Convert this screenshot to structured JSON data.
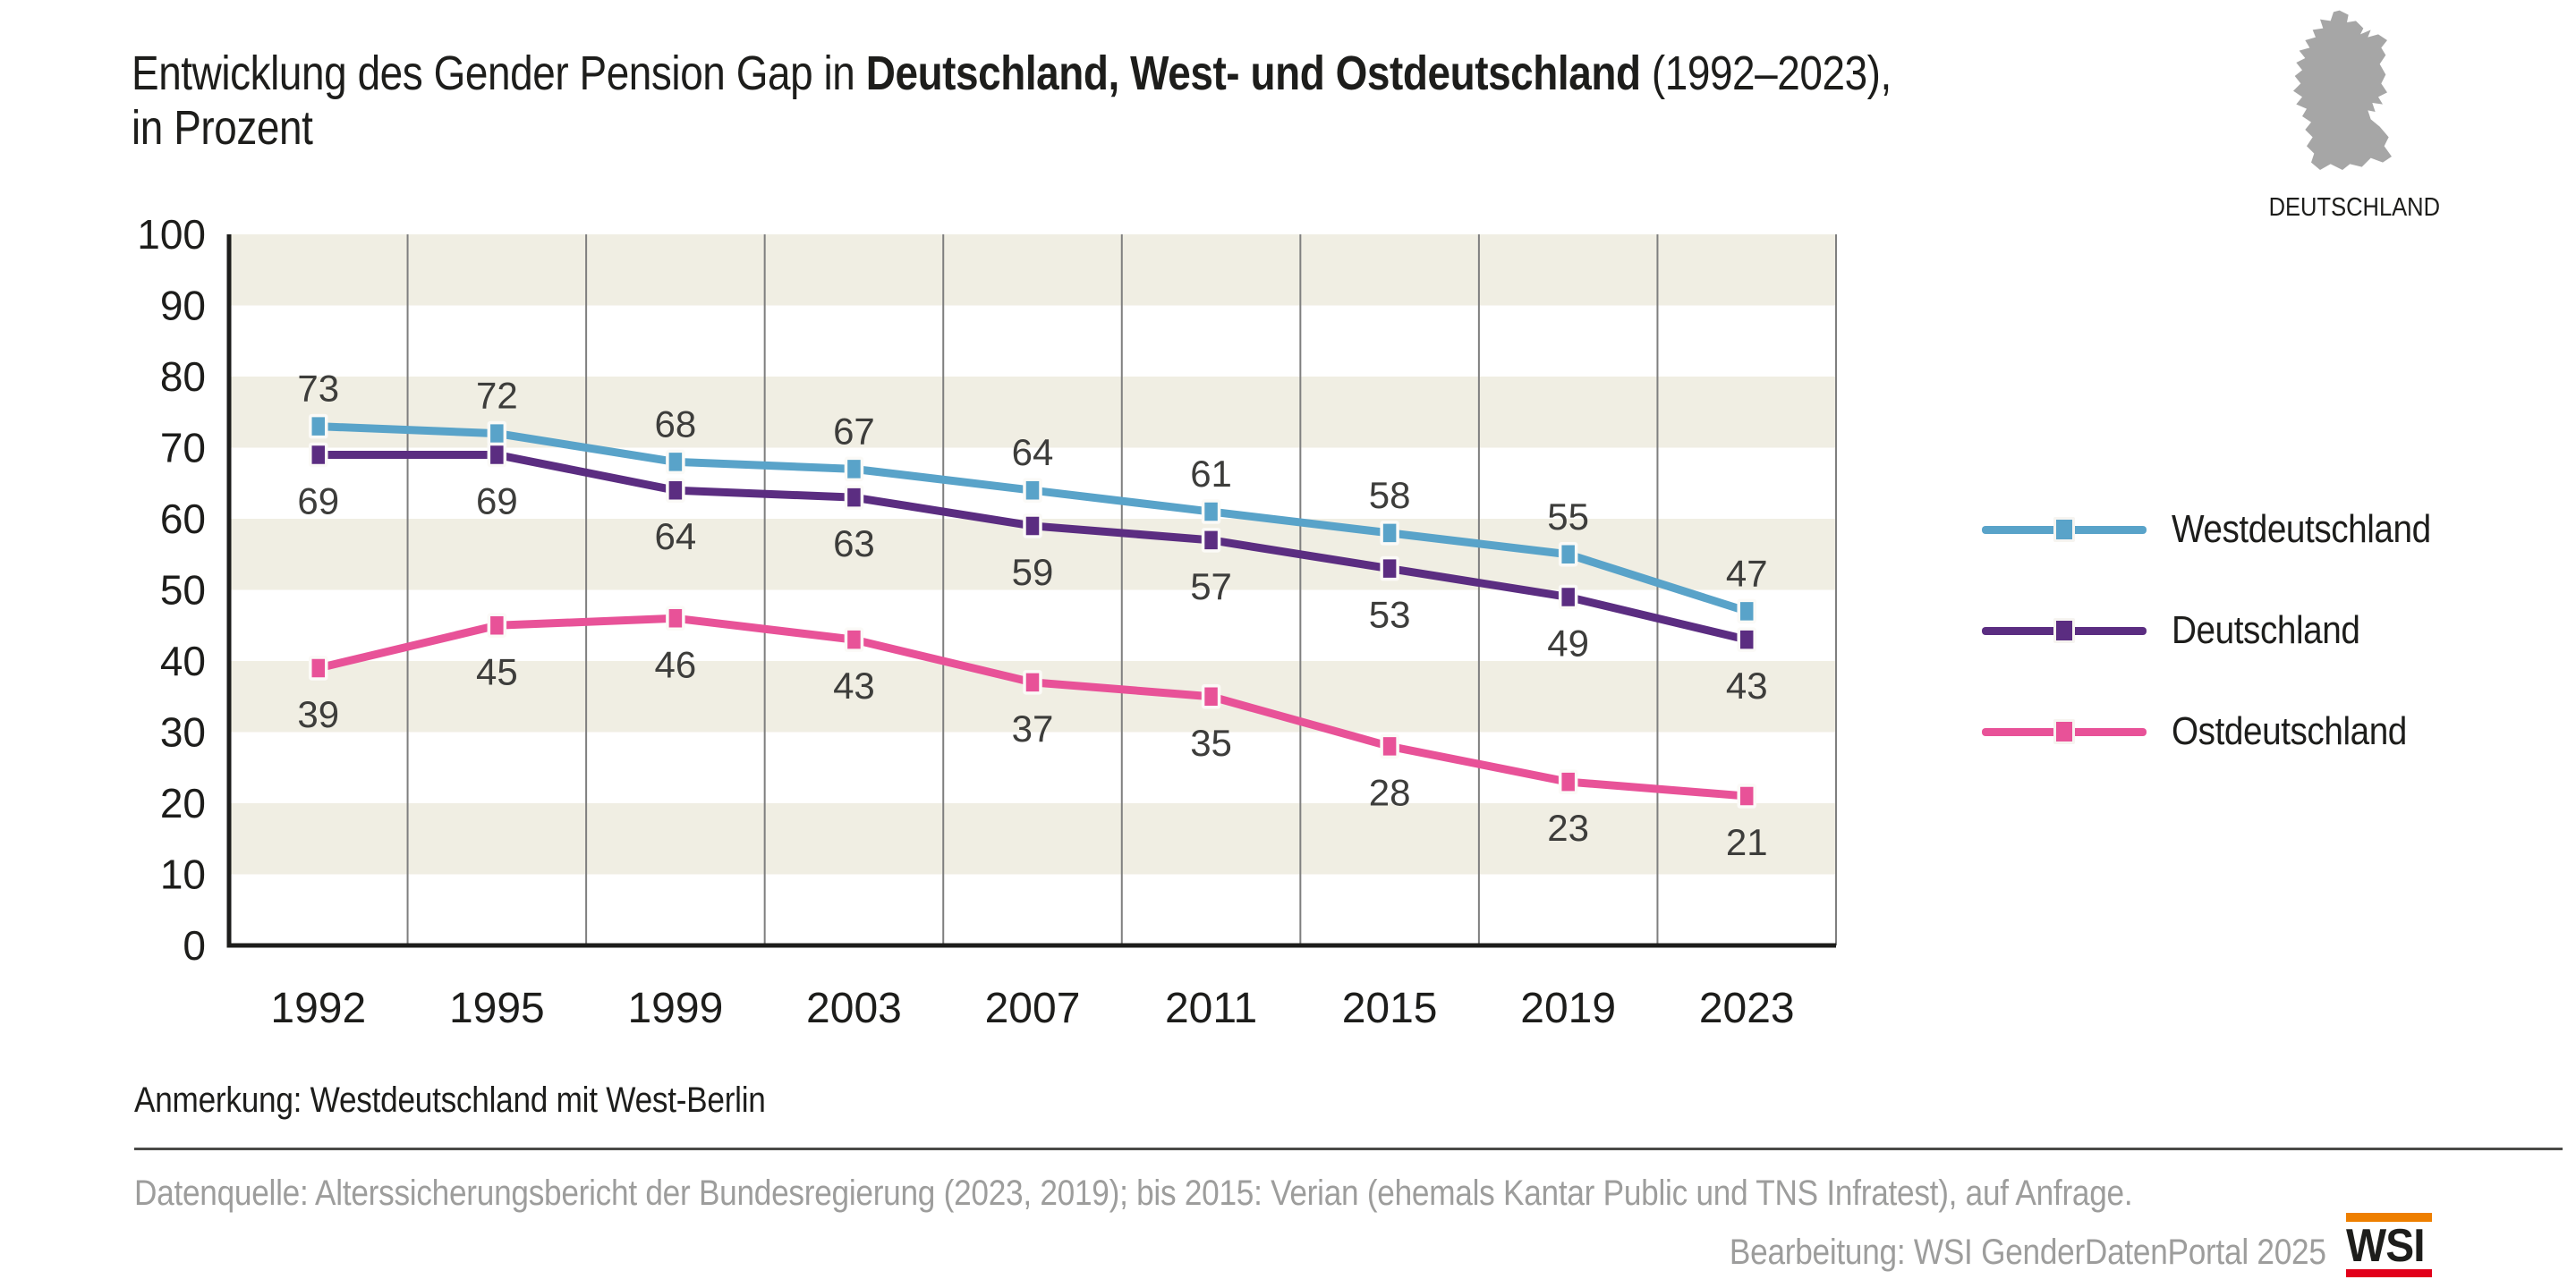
{
  "title": {
    "prefix": "Entwicklung des Gender Pension Gap in ",
    "bold": "Deutschland, West- und Ostdeutschland",
    "suffix": " (1992–2023),",
    "line2": " in Prozent"
  },
  "map_badge": {
    "label": "DEUTSCHLAND",
    "map_color": "#a6a6a6"
  },
  "chart_data": {
    "type": "line",
    "categories": [
      "1992",
      "1995",
      "1999",
      "2003",
      "2007",
      "2011",
      "2015",
      "2019",
      "2023"
    ],
    "series": [
      {
        "name": "Westdeutschland",
        "color": "#59a3c9",
        "values": [
          73,
          72,
          68,
          67,
          64,
          61,
          58,
          55,
          47
        ],
        "label_position": "above"
      },
      {
        "name": "Deutschland",
        "color": "#5b2d81",
        "values": [
          69,
          69,
          64,
          63,
          59,
          57,
          53,
          49,
          43
        ],
        "label_position": "below"
      },
      {
        "name": "Ostdeutschland",
        "color": "#e85298",
        "values": [
          39,
          45,
          46,
          43,
          37,
          35,
          28,
          23,
          21
        ],
        "label_position": "below"
      }
    ],
    "ylim": [
      0,
      100
    ],
    "ytick_step": 10,
    "grid": "on",
    "legend_position": "right",
    "band_color": "#f0eee3",
    "gridline_color": "#7f7f7f",
    "axis_color": "#1d1d1b",
    "value_label_color": "#3d3d3b",
    "tick_label_color": "#1d1d1b",
    "xlabel": "",
    "ylabel": ""
  },
  "footnote": "Anmerkung: Westdeutschland mit West-Berlin",
  "source_line": "Datenquelle: Alterssicherungsbericht der Bundesregierung (2023, 2019); bis 2015: Verian (ehemals Kantar Public und TNS Infratest), auf Anfrage.",
  "credit_line": "Bearbeitung: WSI GenderDatenPortal 2025",
  "logo": {
    "text": "WSI",
    "top_bar_color": "#ee7f00",
    "bottom_bar_color": "#e2001a",
    "text_color": "#1d1d1b"
  }
}
